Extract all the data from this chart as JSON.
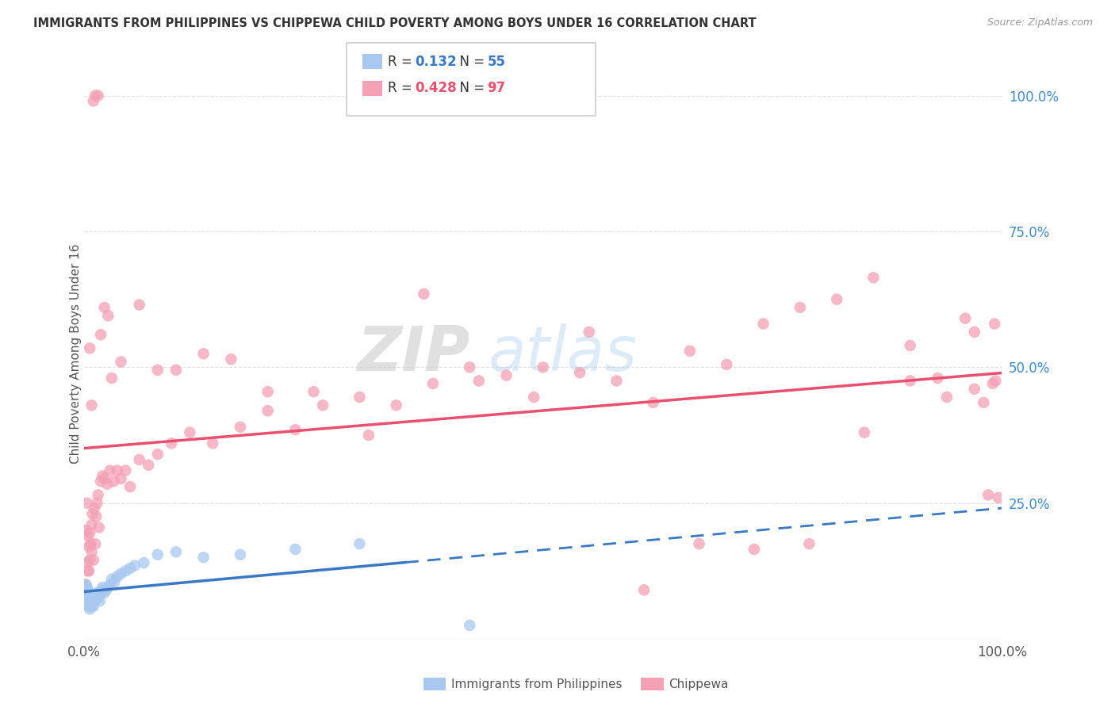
{
  "title": "IMMIGRANTS FROM PHILIPPINES VS CHIPPEWA CHILD POVERTY AMONG BOYS UNDER 16 CORRELATION CHART",
  "source": "Source: ZipAtlas.com",
  "ylabel": "Child Poverty Among Boys Under 16",
  "xlim": [
    0.0,
    1.0
  ],
  "ylim": [
    0.0,
    1.05
  ],
  "yticks": [
    0.25,
    0.5,
    0.75,
    1.0
  ],
  "ytick_labels": [
    "25.0%",
    "50.0%",
    "75.0%",
    "100.0%"
  ],
  "legend_blue_r": "0.132",
  "legend_blue_n": "55",
  "legend_pink_r": "0.428",
  "legend_pink_n": "97",
  "legend_blue_label": "Immigrants from Philippines",
  "legend_pink_label": "Chippewa",
  "blue_color": "#a8c8f0",
  "pink_color": "#f4a0b5",
  "trend_blue_color": "#3a78c4",
  "trend_pink_color": "#e85070",
  "watermark_zip": "ZIP",
  "watermark_atlas": "atlas",
  "blue_x": [
    0.001,
    0.001,
    0.002,
    0.002,
    0.002,
    0.003,
    0.003,
    0.003,
    0.004,
    0.004,
    0.004,
    0.005,
    0.005,
    0.005,
    0.006,
    0.006,
    0.006,
    0.007,
    0.007,
    0.008,
    0.008,
    0.008,
    0.009,
    0.009,
    0.01,
    0.01,
    0.011,
    0.012,
    0.013,
    0.014,
    0.015,
    0.016,
    0.017,
    0.018,
    0.019,
    0.02,
    0.022,
    0.024,
    0.026,
    0.028,
    0.03,
    0.033,
    0.036,
    0.04,
    0.045,
    0.05,
    0.055,
    0.065,
    0.08,
    0.1,
    0.13,
    0.17,
    0.23,
    0.3,
    0.42
  ],
  "blue_y": [
    0.095,
    0.08,
    0.09,
    0.075,
    0.1,
    0.085,
    0.07,
    0.095,
    0.08,
    0.065,
    0.09,
    0.075,
    0.06,
    0.085,
    0.07,
    0.08,
    0.055,
    0.065,
    0.075,
    0.06,
    0.07,
    0.08,
    0.065,
    0.075,
    0.06,
    0.08,
    0.07,
    0.075,
    0.08,
    0.085,
    0.075,
    0.08,
    0.07,
    0.085,
    0.09,
    0.095,
    0.085,
    0.09,
    0.095,
    0.1,
    0.11,
    0.105,
    0.115,
    0.12,
    0.125,
    0.13,
    0.135,
    0.14,
    0.155,
    0.16,
    0.15,
    0.155,
    0.165,
    0.175,
    0.025
  ],
  "pink_x": [
    0.001,
    0.002,
    0.002,
    0.003,
    0.003,
    0.004,
    0.004,
    0.005,
    0.005,
    0.006,
    0.006,
    0.007,
    0.008,
    0.008,
    0.009,
    0.01,
    0.011,
    0.012,
    0.013,
    0.014,
    0.015,
    0.016,
    0.018,
    0.02,
    0.022,
    0.025,
    0.028,
    0.032,
    0.036,
    0.04,
    0.045,
    0.05,
    0.06,
    0.07,
    0.08,
    0.095,
    0.115,
    0.14,
    0.17,
    0.2,
    0.23,
    0.26,
    0.3,
    0.34,
    0.38,
    0.42,
    0.46,
    0.5,
    0.54,
    0.58,
    0.62,
    0.66,
    0.7,
    0.74,
    0.78,
    0.82,
    0.86,
    0.9,
    0.93,
    0.96,
    0.97,
    0.98,
    0.99,
    0.993,
    0.006,
    0.008,
    0.01,
    0.012,
    0.015,
    0.018,
    0.022,
    0.026,
    0.03,
    0.04,
    0.06,
    0.08,
    0.1,
    0.13,
    0.16,
    0.2,
    0.25,
    0.31,
    0.37,
    0.43,
    0.49,
    0.55,
    0.61,
    0.67,
    0.73,
    0.79,
    0.85,
    0.9,
    0.94,
    0.97,
    0.985,
    0.992,
    0.996
  ],
  "pink_y": [
    0.1,
    0.08,
    0.2,
    0.14,
    0.25,
    0.19,
    0.125,
    0.17,
    0.125,
    0.195,
    0.145,
    0.175,
    0.16,
    0.21,
    0.23,
    0.145,
    0.24,
    0.175,
    0.225,
    0.25,
    0.265,
    0.205,
    0.29,
    0.3,
    0.295,
    0.285,
    0.31,
    0.29,
    0.31,
    0.295,
    0.31,
    0.28,
    0.33,
    0.32,
    0.34,
    0.36,
    0.38,
    0.36,
    0.39,
    0.42,
    0.385,
    0.43,
    0.445,
    0.43,
    0.47,
    0.5,
    0.485,
    0.5,
    0.49,
    0.475,
    0.435,
    0.53,
    0.505,
    0.58,
    0.61,
    0.625,
    0.665,
    0.54,
    0.48,
    0.59,
    0.46,
    0.435,
    0.47,
    0.475,
    0.535,
    0.43,
    0.99,
    1.0,
    1.0,
    0.56,
    0.61,
    0.595,
    0.48,
    0.51,
    0.615,
    0.495,
    0.495,
    0.525,
    0.515,
    0.455,
    0.455,
    0.375,
    0.635,
    0.475,
    0.445,
    0.565,
    0.09,
    0.175,
    0.165,
    0.175,
    0.38,
    0.475,
    0.445,
    0.565,
    0.265,
    0.58,
    0.26
  ]
}
